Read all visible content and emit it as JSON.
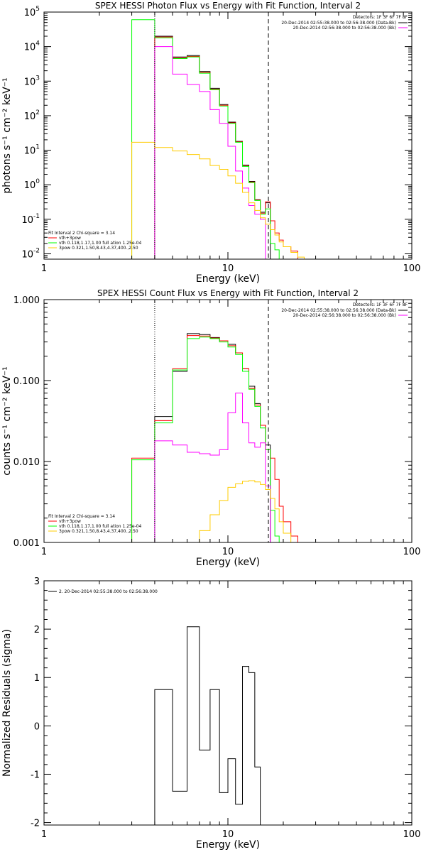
{
  "chart_data": [
    {
      "type": "line",
      "title": "SPEX HESSI Photon Flux vs Energy with Fit Function, Interval 2",
      "xlabel": "Energy (keV)",
      "ylabel": "photons s⁻¹ cm⁻² keV⁻¹",
      "xscale": "log",
      "yscale": "log",
      "xlim": [
        1,
        100
      ],
      "ylim": [
        0.007,
        100000
      ],
      "x_ticks": [
        "1",
        "10",
        "100"
      ],
      "y_ticks": [
        {
          "base": "10",
          "exp": "-2",
          "v": 0.01
        },
        {
          "base": "10",
          "exp": "-1",
          "v": 0.1
        },
        {
          "base": "10",
          "exp": "0",
          "v": 1
        },
        {
          "base": "10",
          "exp": "1",
          "v": 10
        },
        {
          "base": "10",
          "exp": "2",
          "v": 100
        },
        {
          "base": "10",
          "exp": "3",
          "v": 1000
        },
        {
          "base": "10",
          "exp": "4",
          "v": 10000
        },
        {
          "base": "10",
          "exp": "5",
          "v": 100000
        }
      ],
      "bin_edges": [
        3,
        4,
        5,
        6,
        7,
        8,
        9,
        10,
        11,
        12,
        13,
        14,
        15,
        16,
        17,
        18,
        19,
        20,
        22,
        24,
        26
      ],
      "vlines": [
        {
          "x": 4,
          "style": "dotted"
        },
        {
          "x": 16.6,
          "style": "dashed"
        }
      ],
      "legend_right": {
        "header": "Detectors: 1F 3F 6F 7F 8F",
        "rows": [
          {
            "text": "20-Dec-2014 02:55:38.000 to 02:56:38.000 (Data-Bk)",
            "color": "#000000"
          },
          {
            "text": "20-Dec-2014 02:56:38.000 to 02:56:38.000 (Bk)",
            "color": "#ff00ff"
          }
        ]
      },
      "legend_left": {
        "header": "Fit Interval 2   Chi-square = 3.14",
        "rows": [
          {
            "text": "vth+3pow",
            "color": "#ff0000"
          },
          {
            "text": "vth 0.118,1.17,1.00  full ation 1.25e-04",
            "color": "#00ff00"
          },
          {
            "text": "3pow 0.321,1.50,8.43,4.37,400.,2.50",
            "color": "#ffcc00"
          }
        ]
      },
      "series": [
        {
          "color": "#000000",
          "values": [
            null,
            20000,
            5000,
            5500,
            1900,
            620,
            210,
            65,
            18,
            3.7,
            1.25,
            0.37,
            0.16,
            0.3,
            null,
            null,
            null,
            null,
            null,
            null
          ]
        },
        {
          "color": "#ff0000",
          "values": [
            null,
            19000,
            4700,
            5200,
            1800,
            580,
            200,
            62,
            17.5,
            3.5,
            1.2,
            0.36,
            0.15,
            0.32,
            0.09,
            0.04,
            0.025,
            0.016,
            0.012,
            null
          ]
        },
        {
          "color": "#00ff00",
          "values": [
            60000,
            18000,
            4500,
            5000,
            1700,
            560,
            190,
            60,
            17,
            3.4,
            1.15,
            0.35,
            0.14,
            0.2,
            0.02,
            0.013,
            null,
            null,
            null,
            null
          ]
        },
        {
          "color": "#ff00ff",
          "values": [
            null,
            10000,
            1600,
            800,
            500,
            150,
            60,
            13,
            2.5,
            0.8,
            0.25,
            0.14,
            0.1,
            null,
            null,
            null,
            null,
            null,
            null,
            null
          ]
        },
        {
          "color": "#ffcc00",
          "values": [
            17,
            12,
            9.5,
            7.5,
            5.6,
            3.6,
            2.8,
            1.8,
            1.1,
            0.6,
            0.3,
            0.18,
            0.11,
            0.072,
            0.05,
            0.035,
            0.022,
            0.016,
            0.011,
            0.008
          ]
        }
      ]
    },
    {
      "type": "line",
      "title": "SPEX HESSI Count Flux vs Energy with Fit Function, Interval 2",
      "xlabel": "Energy (keV)",
      "ylabel": "counts s⁻¹ cm⁻² keV⁻¹",
      "xscale": "log",
      "yscale": "log",
      "xlim": [
        1,
        100
      ],
      "ylim": [
        0.001,
        1
      ],
      "x_ticks": [
        "1",
        "10",
        "100"
      ],
      "y_ticks": [
        {
          "text": "0.001",
          "v": 0.001
        },
        {
          "text": "0.010",
          "v": 0.01
        },
        {
          "text": "0.100",
          "v": 0.1
        },
        {
          "text": "1.000",
          "v": 1
        }
      ],
      "bin_edges": [
        3,
        4,
        5,
        6,
        7,
        8,
        9,
        10,
        11,
        12,
        13,
        14,
        15,
        16,
        17,
        18,
        19,
        20,
        22,
        24,
        26
      ],
      "vlines": [
        {
          "x": 4,
          "style": "dotted"
        },
        {
          "x": 16.6,
          "style": "dashed"
        }
      ],
      "legend_right": {
        "header": "Detectors: 1F 3F 6F 7F 8F",
        "rows": [
          {
            "text": "20-Dec-2014 02:55:38.000 to 02:56:38.000 (Data-Bk)",
            "color": "#000000"
          },
          {
            "text": "20-Dec-2014 02:56:38.000 to 02:56:38.000 (Bk)",
            "color": "#ff00ff"
          }
        ]
      },
      "legend_left": {
        "header": "Fit Interval 2   Chi-square = 3.14",
        "rows": [
          {
            "text": "vth+3pow",
            "color": "#ff0000"
          },
          {
            "text": "vth 0.118,1.17,1.00  full ation 1.25e-04",
            "color": "#00ff00"
          },
          {
            "text": "3pow 0.321,1.50,8.43,4.37,400.,2.50",
            "color": "#ffcc00"
          }
        ]
      },
      "series": [
        {
          "color": "#000000",
          "values": [
            null,
            0.036,
            0.13,
            0.38,
            0.37,
            0.34,
            0.31,
            0.28,
            0.22,
            0.14,
            0.085,
            0.052,
            0.028,
            0.016,
            null,
            null,
            null,
            null,
            null,
            null
          ]
        },
        {
          "color": "#ff0000",
          "values": [
            0.011,
            0.032,
            0.14,
            0.36,
            0.355,
            0.335,
            0.31,
            0.27,
            0.22,
            0.14,
            0.08,
            0.05,
            0.028,
            0.014,
            0.011,
            0.006,
            0.0028,
            0.0018,
            0.0012,
            null
          ]
        },
        {
          "color": "#00ff00",
          "values": [
            0.0105,
            0.03,
            0.135,
            0.33,
            0.345,
            0.33,
            0.3,
            0.26,
            0.21,
            0.13,
            0.078,
            0.048,
            0.026,
            0.014,
            0.0025,
            0.0012,
            null,
            null,
            null,
            null
          ]
        },
        {
          "color": "#ff00ff",
          "values": [
            null,
            0.018,
            0.016,
            0.013,
            0.0125,
            0.012,
            0.014,
            0.04,
            0.07,
            0.03,
            0.017,
            0.015,
            0.017,
            0.005,
            null,
            null,
            null,
            null,
            null,
            null
          ]
        },
        {
          "color": "#ffcc00",
          "values": [
            null,
            null,
            null,
            0.001,
            0.0014,
            0.0022,
            0.0033,
            0.0048,
            0.0053,
            0.0057,
            0.0058,
            0.0056,
            0.0052,
            0.0045,
            0.0035,
            0.0026,
            0.0018,
            0.0013,
            0.001,
            null
          ]
        }
      ]
    },
    {
      "type": "line",
      "title": "",
      "xlabel": "Energy (keV)",
      "ylabel": "Normalized Residuals (sigma)",
      "xscale": "log",
      "yscale": "linear",
      "xlim": [
        1,
        100
      ],
      "ylim": [
        -2.05,
        3
      ],
      "x_ticks": [
        "1",
        "10",
        "100"
      ],
      "y_ticks": [
        {
          "text": "-2",
          "v": -2
        },
        {
          "text": "-1",
          "v": -1
        },
        {
          "text": "0",
          "v": 0
        },
        {
          "text": "1",
          "v": 1
        },
        {
          "text": "2",
          "v": 2
        },
        {
          "text": "3",
          "v": 3
        }
      ],
      "bin_edges": [
        4,
        5,
        6,
        7,
        8,
        9,
        10,
        11,
        12,
        13,
        14,
        15,
        16.6
      ],
      "baseline": -2.05,
      "legend_left": {
        "header": "",
        "rows": [
          {
            "text": "2. 20-Dec-2014 02:55:38.000 to 02:56:38.000",
            "color": "#000000"
          }
        ]
      },
      "series": [
        {
          "color": "#000000",
          "values": [
            0.75,
            -1.35,
            2.05,
            -0.5,
            0.75,
            -1.38,
            -0.68,
            -1.62,
            1.23,
            1.1,
            -0.85,
            null
          ]
        }
      ]
    }
  ]
}
